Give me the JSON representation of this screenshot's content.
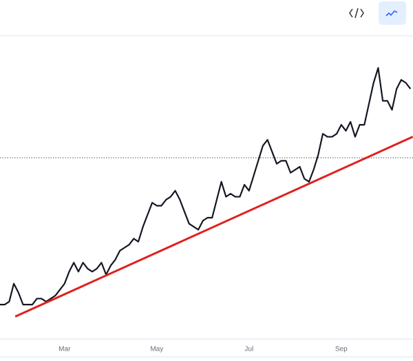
{
  "chart_data": {
    "type": "line",
    "categories": [
      null,
      null,
      null,
      null,
      null,
      null,
      null,
      null,
      null,
      null,
      null,
      null,
      null,
      null,
      "Mar",
      null,
      null,
      null,
      null,
      null,
      null,
      null,
      null,
      null,
      null,
      null,
      null,
      null,
      null,
      null,
      null,
      null,
      null,
      null,
      "May",
      null,
      null,
      null,
      null,
      null,
      null,
      null,
      null,
      null,
      null,
      null,
      null,
      null,
      null,
      null,
      null,
      null,
      null,
      null,
      "Jul",
      null,
      null,
      null,
      null,
      null,
      null,
      null,
      null,
      null,
      null,
      null,
      null,
      null,
      null,
      null,
      null,
      null,
      null,
      null,
      "Sep",
      null,
      null,
      null,
      null,
      null,
      null,
      null,
      null,
      null,
      null,
      null,
      null,
      null,
      null,
      null
    ],
    "series": [
      {
        "color": "#131722",
        "values": [
          11,
          11,
          12,
          18,
          15,
          11,
          11,
          11,
          13,
          13,
          12,
          13,
          14,
          16,
          18,
          22,
          25,
          22,
          25,
          23,
          22,
          23,
          25,
          21,
          24,
          26,
          29,
          30,
          31,
          33,
          32,
          37,
          41,
          45,
          44,
          44,
          46,
          47,
          49,
          46,
          42,
          38,
          37,
          36,
          39,
          40,
          40,
          46,
          52,
          47,
          48,
          47,
          47,
          51,
          49,
          54,
          59,
          64,
          66,
          62,
          58,
          59,
          59,
          55,
          56,
          57,
          53,
          52,
          56,
          61,
          68,
          67,
          67,
          68,
          71,
          69,
          72,
          67,
          71,
          71,
          78,
          85,
          90,
          79,
          79,
          76,
          83,
          86,
          85,
          83
        ]
      }
    ],
    "trendline": {
      "x": [
        3.3,
        89.5
      ],
      "values": [
        7,
        67
      ],
      "color": "#e0201e"
    },
    "reference_line": 60,
    "ylim": [
      0,
      100
    ],
    "grid": false
  }
}
